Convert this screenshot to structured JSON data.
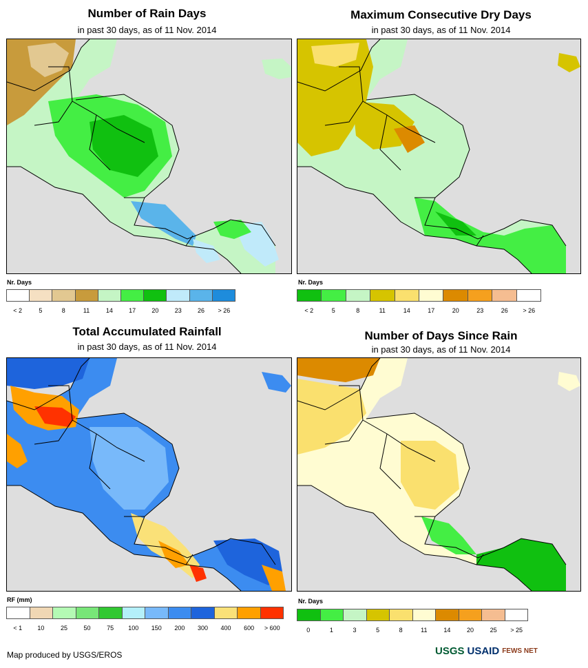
{
  "panels": [
    {
      "title": "Number of Rain Days",
      "subtitle": "in past 30 days, as of 11 Nov. 2014",
      "legend_unit": "Nr. Days",
      "legend_colors": [
        "#ffffff",
        "#f5e0c2",
        "#e2c891",
        "#c89b3c",
        "#c5f5c5",
        "#44ee44",
        "#10c010",
        "#c0eafa",
        "#5ab4ea",
        "#1e8cdc"
      ],
      "legend_labels": [
        "< 2",
        "5",
        "8",
        "11",
        "14",
        "17",
        "20",
        "23",
        "26",
        "> 26"
      ]
    },
    {
      "title": "Maximum Consecutive Dry Days",
      "subtitle": "in past 30 days, as of 11 Nov. 2014",
      "legend_unit": "Nr. Days",
      "legend_colors": [
        "#10c010",
        "#44ee44",
        "#c5f5c5",
        "#d6c400",
        "#fae06e",
        "#fffcd2",
        "#dc8a00",
        "#f5a01e",
        "#f5bd91",
        "#ffffff"
      ],
      "legend_labels": [
        "< 2",
        "5",
        "8",
        "11",
        "14",
        "17",
        "20",
        "23",
        "26",
        "> 26"
      ]
    },
    {
      "title": "Total Accumulated Rainfall",
      "subtitle": "in past 30 days, as of 11 Nov. 2014",
      "legend_unit": "RF (mm)",
      "legend_colors": [
        "#ffffff",
        "#f0d7b4",
        "#b4fab4",
        "#78e678",
        "#32c832",
        "#b4f0fa",
        "#78b9fa",
        "#3c8cf0",
        "#1e64dc",
        "#fae178",
        "#ffa000",
        "#ff3200"
      ],
      "legend_labels": [
        "< 1",
        "10",
        "25",
        "50",
        "75",
        "100",
        "150",
        "200",
        "300",
        "400",
        "600",
        "> 600"
      ]
    },
    {
      "title": "Number of Days Since Rain",
      "subtitle": "in past 30 days, as of 11 Nov. 2014",
      "legend_unit": "Nr. Days",
      "legend_colors": [
        "#10c010",
        "#44ee44",
        "#c5f5c5",
        "#d6c400",
        "#fae06e",
        "#fffcd2",
        "#dc8a00",
        "#f5a01e",
        "#f5bd91",
        "#ffffff"
      ],
      "legend_labels": [
        "0",
        "1",
        "3",
        "5",
        "8",
        "11",
        "14",
        "20",
        "25",
        "> 25"
      ]
    }
  ],
  "footer": {
    "credit": "Map produced by USGS/EROS",
    "logos": [
      "USGS",
      "USAID",
      "FEWS NET"
    ]
  }
}
